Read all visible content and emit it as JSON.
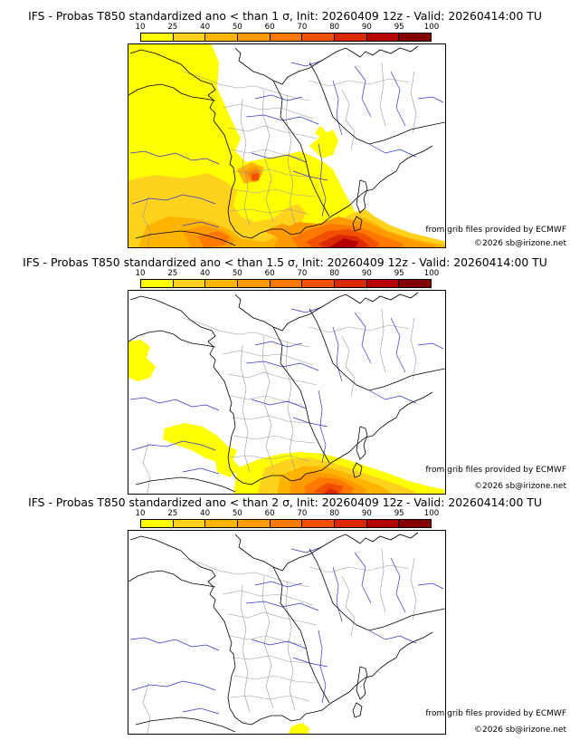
{
  "legend": {
    "ticks": [
      "10",
      "25",
      "40",
      "50",
      "60",
      "70",
      "80",
      "90",
      "95",
      "100"
    ],
    "colors": [
      "#ffff00",
      "#ffd21e",
      "#ffb400",
      "#ff9b00",
      "#ff7800",
      "#f05000",
      "#dc2800",
      "#b40000",
      "#820000"
    ]
  },
  "panels": [
    {
      "title": "IFS - Probas T850  standardized ano < than 1 σ, Init: 20260409 12z - Valid: 20260414:00 TU",
      "credit_source": "from grib files provided by ECMWF",
      "credit_copyright": "©2026 sb@irizone.net",
      "probability_max": 100
    },
    {
      "title": "IFS - Probas T850  standardized ano < than 1.5 σ, Init: 20260409 12z - Valid: 20260414:00 TU",
      "credit_source": "from grib files provided by ECMWF",
      "credit_copyright": "©2026 sb@irizone.net",
      "probability_max": 80
    },
    {
      "title": "IFS - Probas T850  standardized ano < than 2 σ, Init: 20260409 12z - Valid: 20260414:00 TU",
      "credit_source": "from grib files provided by ECMWF",
      "credit_copyright": "©2026 sb@irizone.net",
      "probability_max": 25
    }
  ]
}
